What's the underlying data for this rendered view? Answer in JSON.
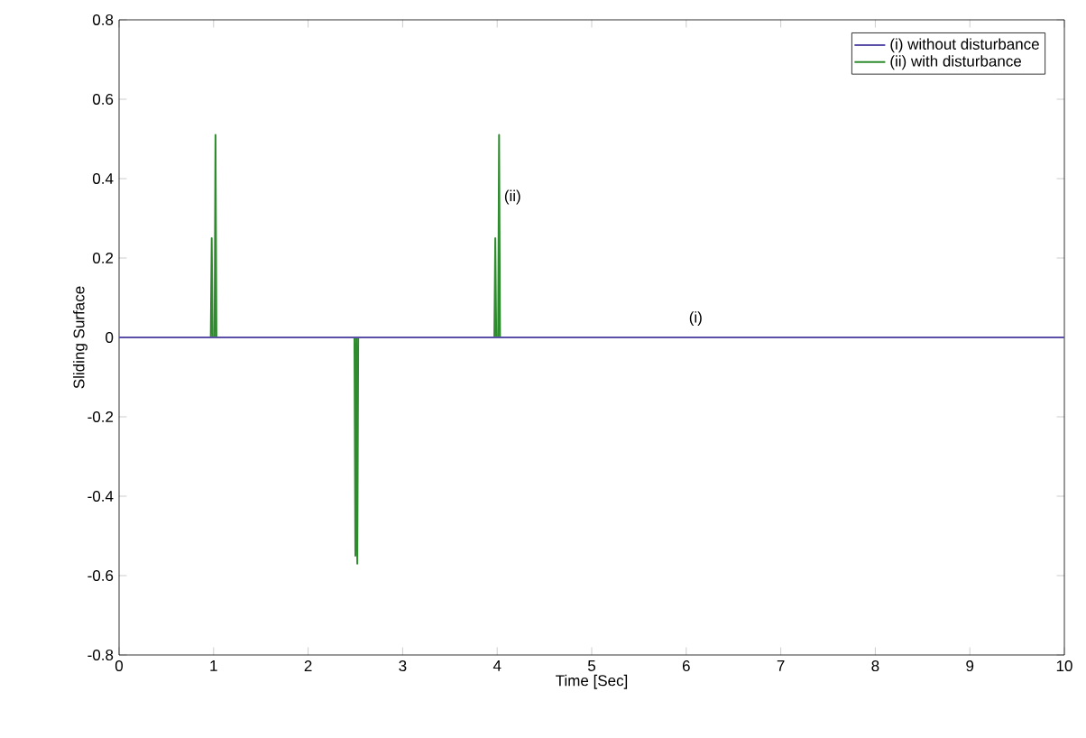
{
  "chart_data": {
    "type": "line",
    "xlabel": "Time [Sec]",
    "ylabel": "Sliding Surface",
    "xlim": [
      0,
      10
    ],
    "ylim": [
      -0.8,
      0.8
    ],
    "xticks": [
      0,
      1,
      2,
      3,
      4,
      5,
      6,
      7,
      8,
      9,
      10
    ],
    "yticks": [
      -0.8,
      -0.6,
      -0.4,
      -0.2,
      0,
      0.2,
      0.4,
      0.6,
      0.8
    ],
    "grid": false,
    "legend": "top right",
    "series": [
      {
        "name": "(ii) with disturbance",
        "color": "#2e8b2e",
        "x": [
          0,
          0.97,
          0.98,
          0.99,
          1.01,
          1.02,
          1.03,
          2.49,
          2.5,
          2.51,
          2.52,
          2.53,
          3.97,
          3.98,
          3.99,
          4.01,
          4.02,
          4.03,
          10
        ],
        "values": [
          0,
          0,
          0.25,
          0,
          0,
          0.51,
          0,
          0,
          -0.55,
          0,
          -0.57,
          0,
          0,
          0.25,
          0,
          0,
          0.51,
          0,
          0
        ]
      },
      {
        "name": "(i) without disturbance",
        "color": "#5a50a8",
        "x": [
          0,
          10
        ],
        "values": [
          0,
          0
        ]
      }
    ],
    "annotations": [
      {
        "text": "(ii)",
        "x": 4.05,
        "y": 0.33
      },
      "(i)"
    ]
  }
}
